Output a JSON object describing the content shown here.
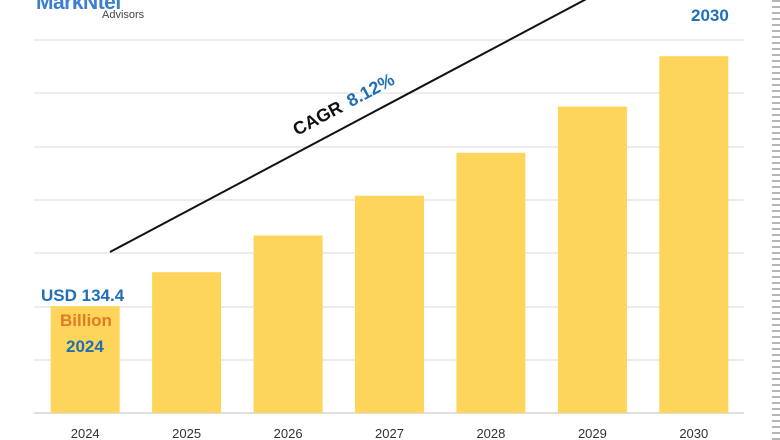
{
  "logo": {
    "name": "MarkNtel",
    "subtitle": "Advisors"
  },
  "annotations": {
    "cagr_label": "CAGR",
    "cagr_value": "8.12%",
    "start_value": "USD 134.4",
    "start_unit": "Billion",
    "start_year": "2024",
    "end_year": "2030"
  },
  "colors": {
    "bar": "#fdd55a",
    "grid": "#d9d9d9",
    "accent_blue": "#1f6fb5",
    "accent_orange": "#e07b2a",
    "trend_line": "#111111"
  },
  "chart_data": {
    "type": "bar",
    "categories": [
      "2024",
      "2025",
      "2026",
      "2027",
      "2028",
      "2029",
      "2030"
    ],
    "values": [
      134.4,
      145.3,
      157.1,
      169.9,
      183.7,
      198.6,
      214.8
    ],
    "ylim": [
      100,
      220
    ],
    "grid": true,
    "trend_line": true,
    "title": "",
    "xlabel": "",
    "ylabel": ""
  }
}
